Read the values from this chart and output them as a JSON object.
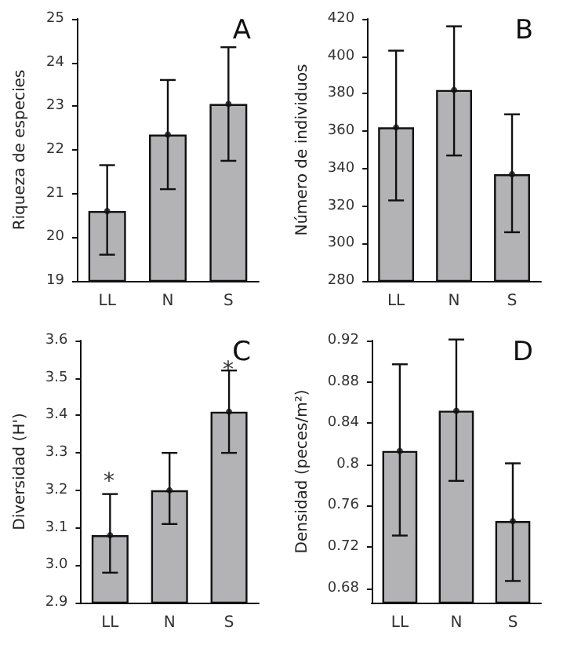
{
  "chart_data": [
    {
      "type": "bar",
      "title": "A",
      "ylabel": "Riqueza de especies",
      "categories": [
        "LL",
        "N",
        "S"
      ],
      "series": [
        {
          "color": "#b3b3b6",
          "values": [
            20.6,
            22.35,
            23.05
          ],
          "errors": [
            [
              19.6,
              21.65
            ],
            [
              21.1,
              23.6
            ],
            [
              21.75,
              24.35
            ]
          ]
        },
        {
          "type": "scatter",
          "color": "#111111",
          "marker": "circle",
          "x": [
            "LL",
            "N",
            "S"
          ],
          "values": [
            20.6,
            22.35,
            23.05
          ]
        }
      ],
      "ylim": [
        19,
        25
      ],
      "yticks": [
        19,
        20,
        21,
        22,
        23,
        24,
        25
      ],
      "grid": false
    },
    {
      "type": "bar",
      "title": "B",
      "ylabel": "Número de individuos",
      "categories": [
        "LL",
        "N",
        "S"
      ],
      "series": [
        {
          "color": "#b3b3b6",
          "values": [
            362,
            382,
            337
          ],
          "errors": [
            [
              323,
              403
            ],
            [
              347,
              416
            ],
            [
              306,
              369
            ]
          ]
        },
        {
          "type": "scatter",
          "color": "#111111",
          "marker": "circle",
          "x": [
            "LL",
            "N",
            "S"
          ],
          "values": [
            362,
            382,
            337
          ]
        }
      ],
      "ylim": [
        280,
        420
      ],
      "yticks": [
        280,
        300,
        320,
        340,
        360,
        380,
        400,
        420
      ],
      "grid": false
    },
    {
      "type": "bar",
      "title": "C",
      "ylabel": "Diversidad (H')",
      "categories": [
        "LL",
        "N",
        "S"
      ],
      "series": [
        {
          "color": "#b3b3b6",
          "values": [
            3.08,
            3.2,
            3.41
          ],
          "errors": [
            [
              2.98,
              3.19
            ],
            [
              3.11,
              3.3
            ],
            [
              3.3,
              3.52
            ]
          ]
        },
        {
          "type": "scatter",
          "color": "#111111",
          "marker": "circle",
          "x": [
            "LL",
            "N",
            "S"
          ],
          "values": [
            3.08,
            3.2,
            3.41
          ]
        }
      ],
      "ylim": [
        2.9,
        3.6
      ],
      "yticks": [
        {
          "value": 2.9,
          "label": "2.9"
        },
        {
          "value": 3.0,
          "label": "3.0"
        },
        {
          "value": 3.1,
          "label": "3.1"
        },
        {
          "value": 3.2,
          "label": "3.2"
        },
        {
          "value": 3.3,
          "label": "3.3"
        },
        {
          "value": 3.4,
          "label": "3.4"
        },
        {
          "value": 3.5,
          "label": "3.5"
        },
        {
          "value": 3.6,
          "label": "3.6"
        }
      ],
      "annotations": [
        "*",
        "*"
      ],
      "grid": false
    },
    {
      "type": "bar",
      "title": "D",
      "ylabel": "Densidad (peces/m²)",
      "categories": [
        "LL",
        "N",
        "S"
      ],
      "series": [
        {
          "color": "#b3b3b6",
          "values": [
            0.813,
            0.852,
            0.745
          ],
          "errors": [
            [
              0.731,
              0.897
            ],
            [
              0.784,
              0.921
            ],
            [
              0.687,
              0.801
            ]
          ]
        },
        {
          "type": "scatter",
          "color": "#111111",
          "marker": "circle",
          "x": [
            "LL",
            "N",
            "S"
          ],
          "values": [
            0.813,
            0.852,
            0.745
          ]
        }
      ],
      "ylim": [
        0.666,
        0.92
      ],
      "yticks": [
        0.68,
        0.72,
        0.76,
        0.8,
        0.84,
        0.88,
        0.92
      ],
      "grid": false
    }
  ]
}
